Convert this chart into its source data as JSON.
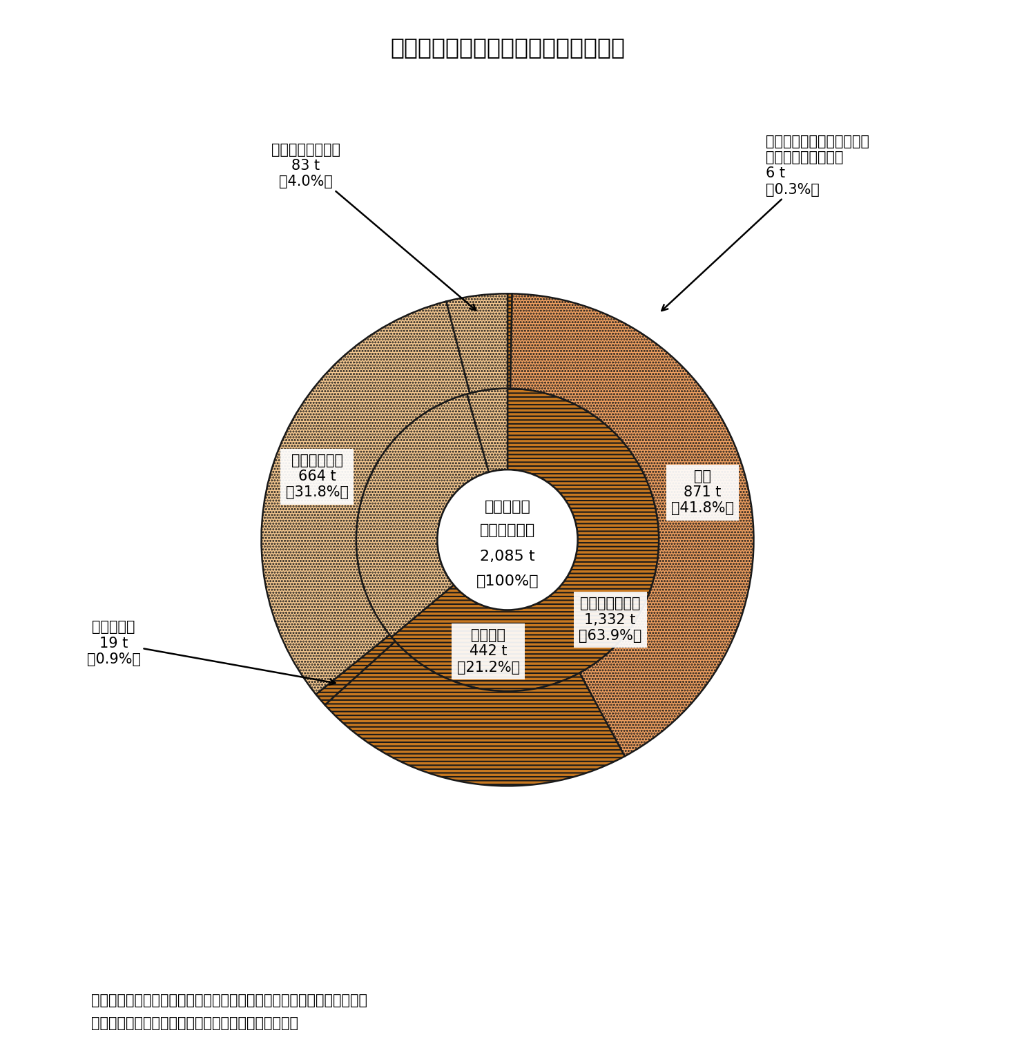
{
  "title": "図　野生鳥獣のジビエ利用量（全国）",
  "center_lines": [
    "令和４年度",
    "ジビエ利用量",
    "2,085 t",
    "（100%）"
  ],
  "outer_slices": [
    {
      "label": "解体処理のみを請け負って\n依頼者へ渡した食肉\n6 t\n（0.3%）",
      "pct": 0.3,
      "facecolor": "#C87820",
      "hatch": "---",
      "outside": true
    },
    {
      "label": "シカ\n871 t\n（41.8%）",
      "pct": 41.8,
      "facecolor": "#F0A060",
      "hatch": "....",
      "outside": false
    },
    {
      "label": "イノシシ\n442 t\n（21.2%）",
      "pct": 21.2,
      "facecolor": "#C87820",
      "hatch": "---",
      "outside": false
    },
    {
      "label": "その他鳥獣\n19 t\n（0.9%）",
      "pct": 0.9,
      "facecolor": "#C87820",
      "hatch": "---",
      "outside": true
    },
    {
      "label": "ペットフード\n664 t\n（31.8%）",
      "pct": 31.8,
      "facecolor": "#F5C890",
      "hatch": "....",
      "outside": false
    },
    {
      "label": "自家消費向け食肉\n83 t\n（4.0%）",
      "pct": 4.0,
      "facecolor": "#F5C890",
      "hatch": "....",
      "outside": true
    }
  ],
  "inner_slices": [
    {
      "label": "食肉として販売\n1,332 t\n（63.9%）",
      "pct": 63.9,
      "facecolor": "#C87820",
      "hatch": "---"
    },
    {
      "label": null,
      "pct": 31.8,
      "facecolor": "#F5C890",
      "hatch": "...."
    },
    {
      "label": null,
      "pct": 4.3,
      "facecolor": "#F5C890",
      "hatch": "...."
    }
  ],
  "outer_outer_r": 1.0,
  "outer_inner_r": 0.615,
  "inner_outer_r": 0.615,
  "inner_inner_r": 0.285,
  "note_line1": "注：　構成割合については、表示単位未満を四捨五入したため、合計値",
  "note_line2": "と内訳の計が一致しない場合がある（以下同じ。）。",
  "figsize": [
    14.7,
    15.28
  ],
  "dpi": 100
}
